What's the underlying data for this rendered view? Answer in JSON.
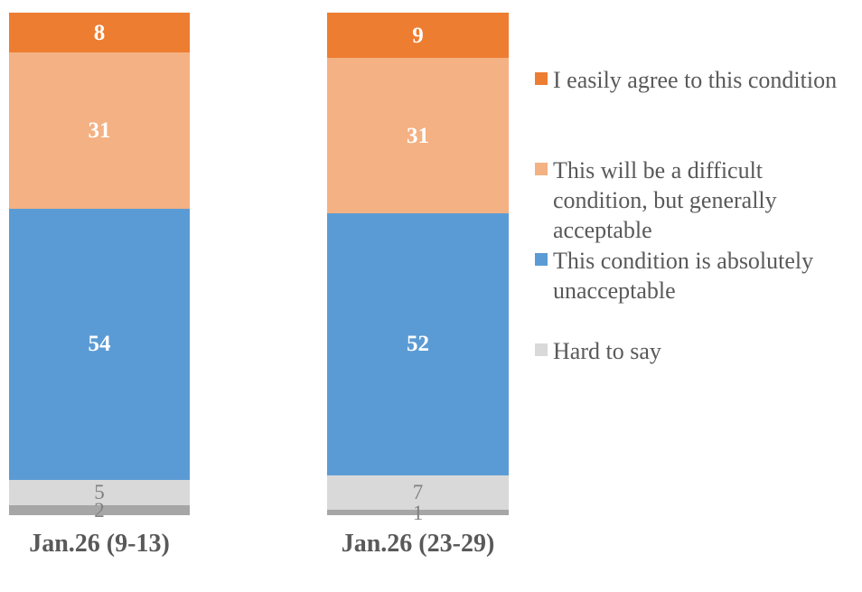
{
  "chart_data": {
    "type": "bar",
    "subtype": "stacked-column-100",
    "title": "",
    "xlabel": "",
    "ylabel": "",
    "ylim": [
      0,
      100
    ],
    "grid": false,
    "legend_position": "right",
    "text_color": "#595959",
    "background_color": "#FFFFFF",
    "categories": [
      "Jan.26 (9-13)",
      "Jan.26 (23-29)"
    ],
    "series": [
      {
        "name": "I easily agree to this condition",
        "values": [
          8,
          9
        ],
        "color": "#ED7D31",
        "label_color": "#FFFFFF",
        "in_legend": true
      },
      {
        "name": "This will be a difficult condition, but generally acceptable",
        "values": [
          31,
          31
        ],
        "color": "#F4B183",
        "label_color": "#FFFFFF",
        "in_legend": true
      },
      {
        "name": "This condition is absolutely unacceptable",
        "values": [
          54,
          52
        ],
        "color": "#5B9BD5",
        "label_color": "#FFFFFF",
        "in_legend": true
      },
      {
        "name": "Hard to say",
        "values": [
          5,
          7
        ],
        "color": "#D9D9D9",
        "label_color": "#808080",
        "in_legend": true
      },
      {
        "name": "",
        "values": [
          2,
          1
        ],
        "color": "#A6A6A6",
        "label_color": "#808080",
        "in_legend": false
      }
    ]
  }
}
